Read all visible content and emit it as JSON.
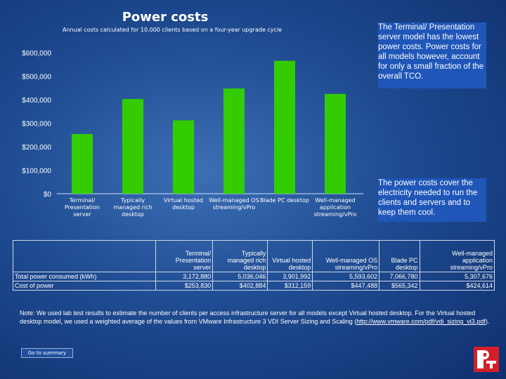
{
  "chart_data": {
    "type": "bar",
    "title": "Power costs",
    "subtitle": "Annual costs calculated for 10,000 clients based on a four-year upgrade cycle",
    "categories": [
      "Terminal/ Presentation server",
      "Typically managed rich desktop",
      "Virtual hosted desktop",
      "Well-managed OS streaming/vPro",
      "Blade PC desktop",
      "Well-managed application streaming/vPro"
    ],
    "category_label_lines": [
      [
        "Terminal/",
        "Presentation",
        "server"
      ],
      [
        "Typically",
        "managed rich",
        "desktop"
      ],
      [
        "Virtual hosted",
        "desktop"
      ],
      [
        "Well-managed OS",
        "streaming/vPro"
      ],
      [
        "Blade PC desktop"
      ],
      [
        "Well-managed",
        "application",
        "streaming/vPro"
      ]
    ],
    "values": [
      253830,
      402884,
      312159,
      447488,
      565342,
      424614
    ],
    "ylim": [
      0,
      600000
    ],
    "yticks": [
      0,
      100000,
      200000,
      300000,
      400000,
      500000,
      600000
    ],
    "ytick_labels": [
      "$0",
      "$100,000",
      "$200,000",
      "$300,000",
      "$400,000",
      "$500,000",
      "$600,000"
    ],
    "bar_color": "#33cc00",
    "grid": false
  },
  "notes": {
    "top": "The Terminal/ Presentation server model has the lowest power costs. Power costs for all models however, account for only a small fraction of the overall TCO.",
    "bottom": "The power costs cover the electricity needed to run the clients and servers and to keep them cool."
  },
  "table": {
    "headers": [
      "Terminal/ Presentation server",
      "Typically managed rich desktop",
      "Virtual hosted desktop",
      "Well-managed OS streaming/vPro",
      "Blade PC desktop",
      "Well-managed application streaming/vPro"
    ],
    "rows": [
      {
        "label": "Total power consumed (kWh)",
        "cells": [
          "3,172,880",
          "5,036,046",
          "3,901,992",
          "5,593,602",
          "7,066,780",
          "5,307,676"
        ]
      },
      {
        "label": "Cost of power",
        "cells": [
          "$253,830",
          "$402,884",
          "$312,159",
          "$447,488",
          "$565,342",
          "$424,614"
        ]
      }
    ]
  },
  "footnote": {
    "text": "Note: We used lab test results to estimate the number of clients per access infrastructure server for all models except Virtual hosted desktop. For the Virtual hosted desktop model, we used a weighted average of the values from VMware Infrastructure 3 VDI Server Sizing and Scaling (",
    "link": "http://www.vmware.com/pdf/vdi_sizing_vi3.pdf",
    "tail": ")."
  },
  "nav": {
    "goto_label": "Go to summary"
  },
  "colors": {
    "note_bg": "#1f56b8",
    "logo": "#d41f2a"
  }
}
